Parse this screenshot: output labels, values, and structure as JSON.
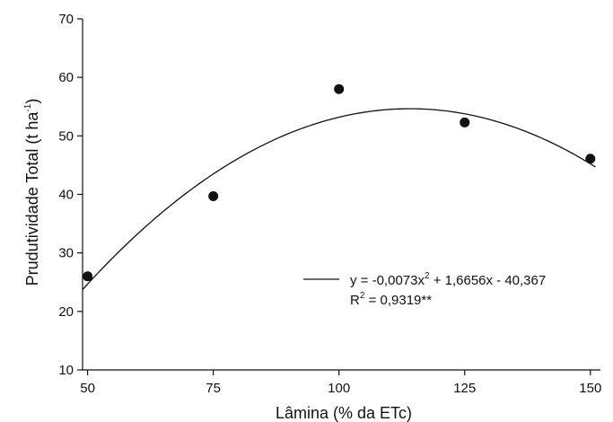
{
  "chart_data": {
    "type": "scatter",
    "xlabel": "Lâmina (% da ETc)",
    "ylabel_main": "Prudutividade Total (t ha",
    "ylabel_sup": "-1",
    "ylabel_end": ")",
    "xlim": [
      49,
      152
    ],
    "ylim": [
      10,
      70
    ],
    "xticks": [
      50,
      75,
      100,
      125,
      150
    ],
    "yticks": [
      10,
      20,
      30,
      40,
      50,
      60,
      70
    ],
    "points": [
      {
        "x": 50,
        "y": 26.0
      },
      {
        "x": 75,
        "y": 39.7
      },
      {
        "x": 100,
        "y": 58.0
      },
      {
        "x": 125,
        "y": 52.3
      },
      {
        "x": 150,
        "y": 46.1
      }
    ],
    "fit": {
      "a": -0.0073,
      "b": 1.6656,
      "c": -40.367,
      "x_range": [
        49,
        151
      ]
    },
    "equation_part1": "y = -0,0073x",
    "equation_sup": "2",
    "equation_part2": " + 1,6656x - 40,367",
    "r2_part1": "R",
    "r2_sup": "2",
    "r2_part2": " = 0,9319**",
    "grid": false,
    "legend_position": "right-middle"
  }
}
